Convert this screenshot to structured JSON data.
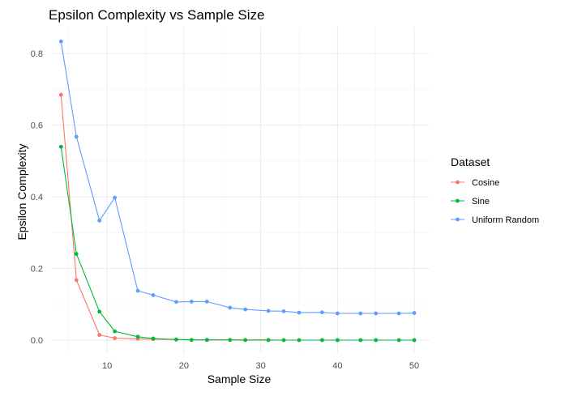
{
  "chart_data": {
    "type": "line",
    "title": "Epsilon Complexity vs Sample Size",
    "xlabel": "Sample Size",
    "ylabel": "Epsilon Complexity",
    "xlim": [
      2.7,
      52
    ],
    "ylim": [
      -0.038,
      0.875
    ],
    "x_ticks": [
      10,
      20,
      30,
      40,
      50
    ],
    "y_ticks": [
      0.0,
      0.2,
      0.4,
      0.6,
      0.8
    ],
    "x_tick_labels": [
      "10",
      "20",
      "30",
      "40",
      "50"
    ],
    "y_tick_labels": [
      "0.0",
      "0.2",
      "0.4",
      "0.6",
      "0.8"
    ],
    "grid": true,
    "legend": {
      "title": "Dataset",
      "position": "right"
    },
    "x": [
      4,
      6,
      9,
      11,
      14,
      16,
      19,
      21,
      23,
      26,
      28,
      31,
      33,
      35,
      38,
      40,
      43,
      45,
      48,
      50
    ],
    "series": [
      {
        "name": "Cosine",
        "color": "#F8766D",
        "values": [
          0.685,
          0.168,
          0.015,
          0.006,
          0.004,
          0.003,
          0.002,
          0.001,
          0.001,
          0.001,
          0.001,
          0.001,
          0.0005,
          0.0005,
          0.0005,
          0.0005,
          0.0005,
          0.0005,
          0.0005,
          0.0005
        ]
      },
      {
        "name": "Sine",
        "color": "#00BA38",
        "values": [
          0.54,
          0.241,
          0.08,
          0.025,
          0.01,
          0.005,
          0.002,
          0.001,
          0.001,
          0.001,
          0.0005,
          0.0005,
          0.0005,
          0.0005,
          0.0005,
          0.0005,
          0.0005,
          0.0005,
          0.0005,
          0.0005
        ]
      },
      {
        "name": "Uniform Random",
        "color": "#619CFF",
        "values": [
          0.834,
          0.568,
          0.334,
          0.398,
          0.138,
          0.126,
          0.107,
          0.108,
          0.108,
          0.091,
          0.086,
          0.082,
          0.081,
          0.077,
          0.078,
          0.075,
          0.075,
          0.075,
          0.075,
          0.076
        ]
      }
    ]
  }
}
